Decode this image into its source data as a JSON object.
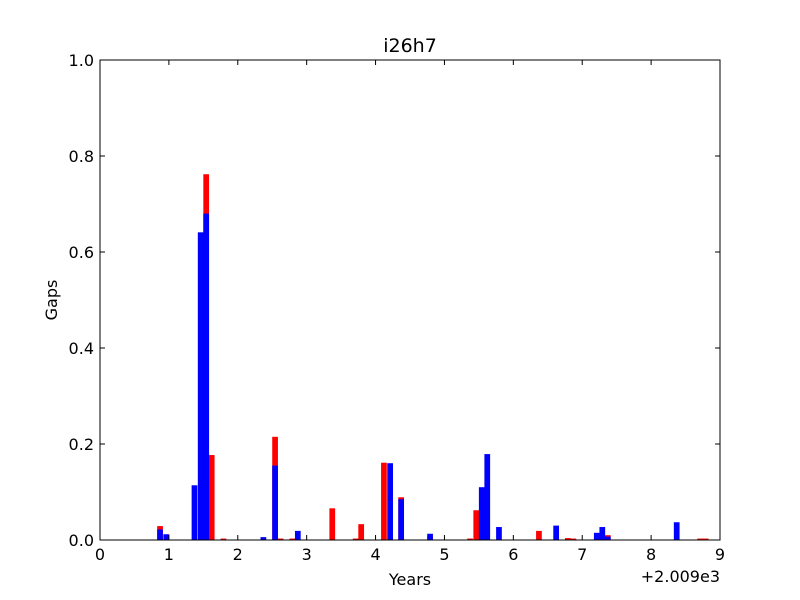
{
  "chart_data": {
    "type": "bar",
    "title": "i26h7",
    "xlabel": "Years",
    "ylabel": "Gaps",
    "x_offset_label": "+2.009e3",
    "xlim": [
      0,
      9
    ],
    "ylim": [
      0,
      1.0
    ],
    "x_ticks": [
      "0",
      "1",
      "2",
      "3",
      "4",
      "5",
      "6",
      "7",
      "8",
      "9"
    ],
    "y_ticks": [
      "0.0",
      "0.2",
      "0.4",
      "0.6",
      "0.8",
      "1.0"
    ],
    "grid": false,
    "bar_width": 0.083,
    "series": [
      {
        "color": "#ff0000",
        "x": [
          0.83,
          1.5,
          1.58,
          1.75,
          2.5,
          2.58,
          2.75,
          3.33,
          3.67,
          3.75,
          4.08,
          4.33,
          4.75,
          5.33,
          5.42,
          6.33,
          6.75,
          6.83,
          7.25,
          7.33,
          8.67,
          8.75
        ],
        "values": [
          0.029,
          0.762,
          0.177,
          0.003,
          0.215,
          0.003,
          0.003,
          0.066,
          0.003,
          0.033,
          0.161,
          0.089,
          0.008,
          0.003,
          0.062,
          0.019,
          0.004,
          0.003,
          0.002,
          0.01,
          0.003,
          0.003
        ]
      },
      {
        "color": "#0000ff",
        "x": [
          0.83,
          0.92,
          1.33,
          1.42,
          1.5,
          2.33,
          2.5,
          2.83,
          4.17,
          4.33,
          4.75,
          5.5,
          5.58,
          5.75,
          6.58,
          7.17,
          7.25,
          7.33,
          8.33
        ],
        "values": [
          0.022,
          0.012,
          0.114,
          0.641,
          0.68,
          0.006,
          0.155,
          0.019,
          0.16,
          0.085,
          0.013,
          0.11,
          0.179,
          0.027,
          0.03,
          0.015,
          0.027,
          0.007,
          0.037
        ]
      }
    ]
  }
}
